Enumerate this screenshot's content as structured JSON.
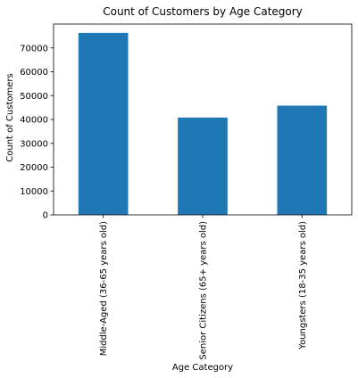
{
  "chart_data": {
    "type": "bar",
    "title": "Count of Customers by Age Category",
    "xlabel": "Age Category",
    "ylabel": "Count of Customers",
    "categories": [
      "Middle-Aged (36-65 years old)",
      "Senior Citizens (65+ years old)",
      "Youngsters (18-35 years old)"
    ],
    "values": [
      76300,
      40800,
      45800
    ],
    "ylim": [
      0,
      80000
    ],
    "yticks": [
      0,
      10000,
      20000,
      30000,
      40000,
      50000,
      60000,
      70000
    ],
    "bar_color": "#1f77b4",
    "grid": false,
    "legend": "none"
  }
}
